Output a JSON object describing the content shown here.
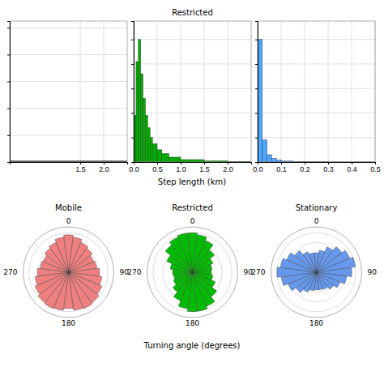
{
  "chart_data": [
    {
      "type": "line",
      "x": [
        0.0,
        2.5
      ],
      "values": [
        0.005,
        0.005
      ],
      "color": "#000000",
      "xlim": [
        0.0,
        2.5
      ],
      "xticks": [
        1.5,
        {
          "value": 2.0,
          "label": "2.0"
        }
      ],
      "ylim": [
        0,
        1.05
      ],
      "yticks": [
        0,
        0.2,
        0.4,
        0.6,
        0.8,
        1.0
      ],
      "grid": true,
      "tick_labels": "x"
    },
    {
      "type": "histogram",
      "title": "Restricted",
      "xlabel": "Step length (km)",
      "bins": [
        0.0,
        0.05,
        0.1,
        0.15,
        0.2,
        0.25,
        0.3,
        0.35,
        0.4,
        0.5,
        0.6,
        0.75,
        1.0,
        1.5,
        2.0,
        2.5
      ],
      "values": [
        0.38,
        0.82,
        1.0,
        0.72,
        0.52,
        0.38,
        0.28,
        0.2,
        0.15,
        0.1,
        0.07,
        0.04,
        0.02,
        0.01,
        0.005
      ],
      "color": "#00aa00",
      "xlim": [
        0,
        2.5
      ],
      "xticks": [
        {
          "value": 0.0,
          "label": "0.0"
        },
        0.5,
        {
          "value": 1.0,
          "label": "1.0"
        },
        1.5,
        {
          "value": 2.0,
          "label": "2.0"
        }
      ],
      "ylim": [
        0,
        1.15
      ],
      "yticks": [
        0,
        0.2,
        0.4,
        0.6,
        0.8,
        1.0
      ],
      "grid": true,
      "tick_labels": "x"
    },
    {
      "type": "histogram",
      "bins": [
        0.0,
        0.02,
        0.04,
        0.06,
        0.08,
        0.1,
        0.15,
        0.2,
        0.3,
        0.5
      ],
      "values": [
        1.0,
        0.18,
        0.06,
        0.03,
        0.015,
        0.008,
        0.004,
        0.002,
        0.001
      ],
      "color": "#4da6ff",
      "xlim": [
        0,
        0.5
      ],
      "xticks": [
        {
          "value": 0.0,
          "label": "0.0"
        },
        0.1,
        0.2,
        0.3,
        0.4,
        0.5
      ],
      "ylim": [
        0,
        1.15
      ],
      "yticks": [
        0,
        0.2,
        0.4,
        0.6,
        0.8,
        1.0
      ],
      "grid": true,
      "tick_labels": "x"
    },
    {
      "type": "polar",
      "title": "Mobile",
      "color": "#f08080",
      "x": [
        0,
        15,
        30,
        45,
        60,
        75,
        90,
        105,
        120,
        135,
        150,
        165,
        180,
        195,
        210,
        225,
        240,
        255,
        270,
        285,
        300,
        315,
        330,
        345
      ],
      "values": [
        0.9473684,
        0.8947368,
        0.8157895,
        0.7631579,
        0.6973684,
        0.7236842,
        0.7894737,
        0.8552632,
        0.9210526,
        0.9736842,
        1,
        0.9736842,
        0.9210526,
        0.9736842,
        1,
        0.9736842,
        0.9210526,
        0.8552632,
        0.7894737,
        0.7236842,
        0.6973684,
        0.7631579,
        0.8157895,
        0.8947368
      ],
      "xlim": [
        0,
        360
      ],
      "xticks": [
        0,
        90,
        180,
        270
      ],
      "ylim": [
        0,
        1.15
      ],
      "yticks": [
        0.25,
        0.5,
        0.75,
        1.0
      ],
      "grid": true,
      "tick_labels": "x"
    },
    {
      "type": "polar",
      "title": "Restricted",
      "xlabel": "Turning angle (degrees)",
      "color": "#00bb00",
      "x": [
        0,
        15,
        30,
        45,
        60,
        75,
        90,
        105,
        120,
        135,
        150,
        165,
        180,
        195,
        210,
        225,
        240,
        255,
        270,
        285,
        300,
        315,
        330,
        345
      ],
      "values": [
        1,
        0.9565217,
        0.8695652,
        0.7065217,
        0.5652174,
        0.5,
        0.4782609,
        0.5217391,
        0.6304348,
        0.7826087,
        0.9347826,
        1,
        1,
        0.9347826,
        0.7826087,
        0.6304348,
        0.5217391,
        0.4782609,
        0.5,
        0.5652174,
        0.7065217,
        0.8695652,
        0.9565217,
        1
      ],
      "xlim": [
        0,
        360
      ],
      "xticks": [
        0,
        90,
        180,
        270
      ],
      "ylim": [
        0,
        1.15
      ],
      "yticks": [
        0.25,
        0.5,
        0.75,
        1.0
      ],
      "grid": true,
      "tick_labels": "x"
    },
    {
      "type": "polar",
      "title": "Stationary",
      "color": "#6699ee",
      "x": [
        0,
        15,
        30,
        45,
        60,
        75,
        90,
        105,
        120,
        135,
        150,
        165,
        180,
        195,
        210,
        225,
        240,
        255,
        270,
        285,
        300,
        315,
        330,
        345
      ],
      "values": [
        0.4897959,
        0.5612245,
        0.6938776,
        0.8163265,
        0.9183673,
        1,
        0.8979592,
        0.7755102,
        0.6530612,
        0.5510204,
        0.4693878,
        0.4489796,
        0.4489796,
        0.4693878,
        0.5510204,
        0.6530612,
        0.7755102,
        0.8979592,
        1,
        0.9183673,
        0.8163265,
        0.6938776,
        0.5612245,
        0.4897959
      ],
      "xlim": [
        0,
        360
      ],
      "xticks": [
        0,
        90,
        180,
        270
      ],
      "ylim": [
        0,
        1.15
      ],
      "yticks": [
        0.25,
        0.5,
        0.75,
        1.0
      ],
      "grid": true,
      "tick_labels": "x"
    }
  ]
}
